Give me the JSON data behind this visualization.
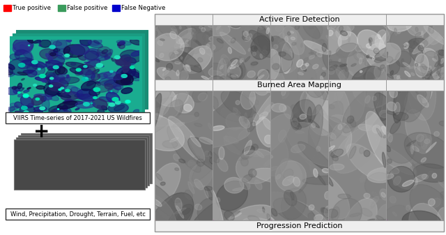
{
  "legend_items": [
    {
      "label": "True positive",
      "color": "#ff0000"
    },
    {
      "label": "False positive",
      "color": "#3a9b5c"
    },
    {
      "label": "False Negative",
      "color": "#0000cc"
    }
  ],
  "left_panel": {
    "viirs_label": "VIIRS Time-series of 2017-2021 US Wildfires",
    "aux_label": "Wind, Precipitation, Drought, Terrain, Fuel, etc",
    "viirs_stack_border_colors": [
      "#2db89a",
      "#2aaa90",
      "#28a08a"
    ],
    "viirs_main_color": "#1a1060",
    "aux_stack_color": "#505050"
  },
  "right_panel": {
    "section_labels": [
      "Active Fire Detection",
      "Burned Area Mapping",
      "Progression Prediction"
    ],
    "label_bg_color": "#efefef",
    "border_color": "#999999"
  },
  "figure_bg": "#ffffff"
}
